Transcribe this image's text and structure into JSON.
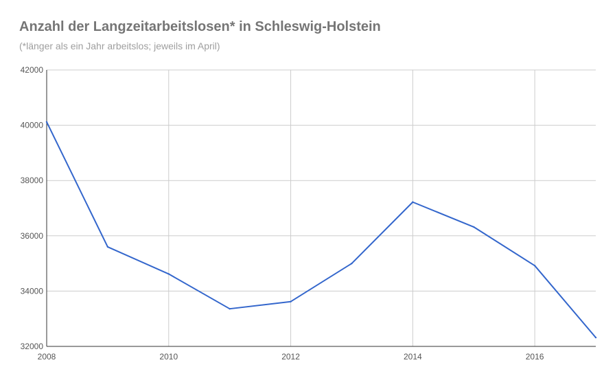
{
  "chart_data": {
    "type": "line",
    "title": "Anzahl der Langzeitarbeitslosen* in Schleswig-Holstein",
    "subtitle": "(*länger als ein Jahr arbeitslos; jeweils im April)",
    "xlabel": "",
    "ylabel": "",
    "x": [
      2008,
      2009,
      2010,
      2011,
      2012,
      2013,
      2014,
      2015,
      2016,
      2017
    ],
    "series": [
      {
        "values": [
          40120,
          35600,
          34620,
          33360,
          33620,
          35000,
          37220,
          36320,
          34920,
          32320
        ]
      }
    ],
    "xlim": [
      2008,
      2017
    ],
    "ylim": [
      32000,
      42000
    ],
    "x_ticks": [
      "2008",
      "2010",
      "2012",
      "2014",
      "2016"
    ],
    "y_ticks": [
      "42000",
      "40000",
      "38000",
      "36000",
      "34000",
      "32000"
    ],
    "grid": true,
    "legend": "none",
    "colors": {
      "line": "#3366cc",
      "grid": "#cccccc",
      "axis": "#333333",
      "title": "#757575",
      "subtitle": "#9e9e9e"
    }
  }
}
